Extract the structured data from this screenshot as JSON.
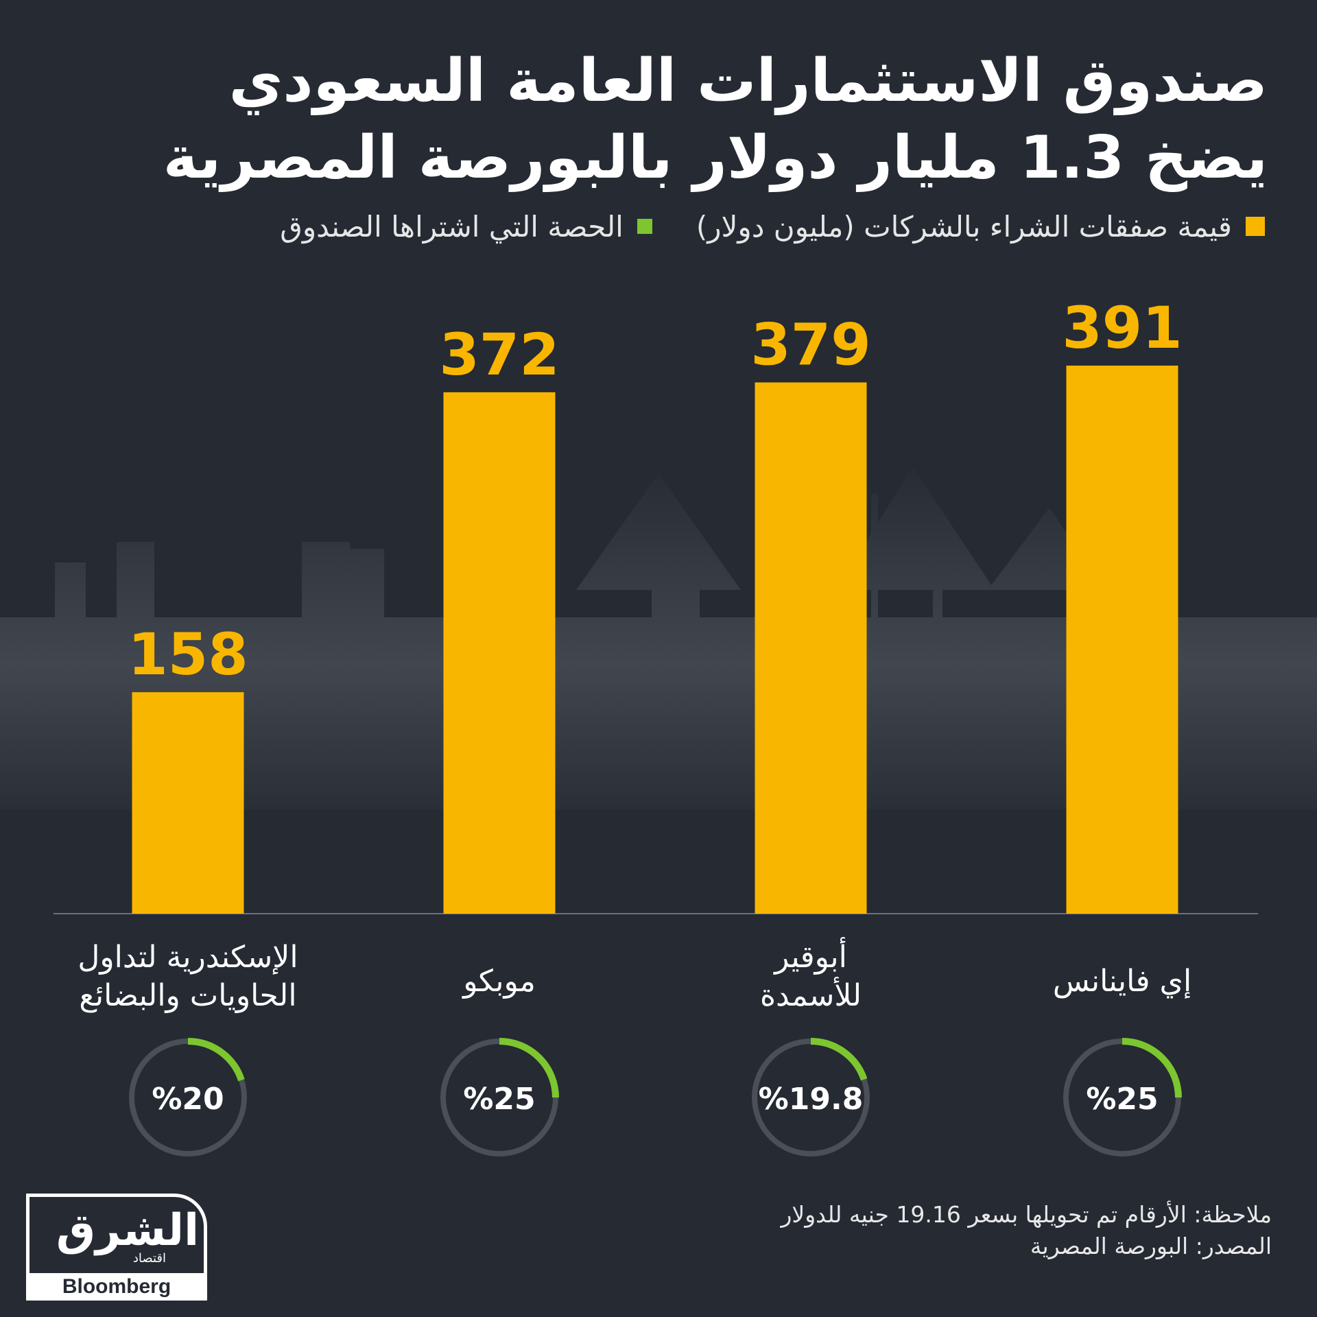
{
  "title": {
    "line1": "صندوق الاستثمارات العامة السعودي",
    "line2": "يضخ 1.3 مليار دولار بالبورصة المصرية"
  },
  "legend": {
    "bars_label": "قيمة صفقات الشراء بالشركات (مليون دولار)",
    "rings_label": "الحصة التي اشتراها الصندوق"
  },
  "colors": {
    "background": "#252a33",
    "bar": "#f9b600",
    "ring_fill": "#7dc62f",
    "ring_track": "#4a4f58"
  },
  "chart_data": {
    "type": "bar",
    "categories": [
      "إي فاينانس",
      "أبوقير للأسمدة",
      "موبكو",
      "الإسكندرية لتداول الحاويات والبضائع"
    ],
    "category_lines": [
      [
        "إي فاينانس"
      ],
      [
        "أبوقير",
        "للأسمدة"
      ],
      [
        "موبكو"
      ],
      [
        "الإسكندرية لتداول",
        "الحاويات والبضائع"
      ]
    ],
    "series": [
      {
        "name": "قيمة صفقات الشراء بالشركات (مليون دولار)",
        "values": [
          391,
          379,
          372,
          158
        ]
      },
      {
        "name": "الحصة التي اشتراها الصندوق",
        "values": [
          25,
          19.8,
          25,
          20
        ]
      }
    ],
    "share_labels": [
      "%25",
      "%19.8",
      "%25",
      "%20"
    ],
    "unit": "مليون دولار",
    "ylim": [
      0,
      391
    ],
    "order": "right-to-left",
    "grid": false
  },
  "footer": {
    "note": "ملاحظة: الأرقام تم تحويلها بسعر 19.16 جنيه للدولار",
    "source": "المصدر: البورصة المصرية"
  },
  "logo": {
    "brand": "الشرق",
    "sub": "اقتصاد",
    "partner": "Bloomberg"
  }
}
